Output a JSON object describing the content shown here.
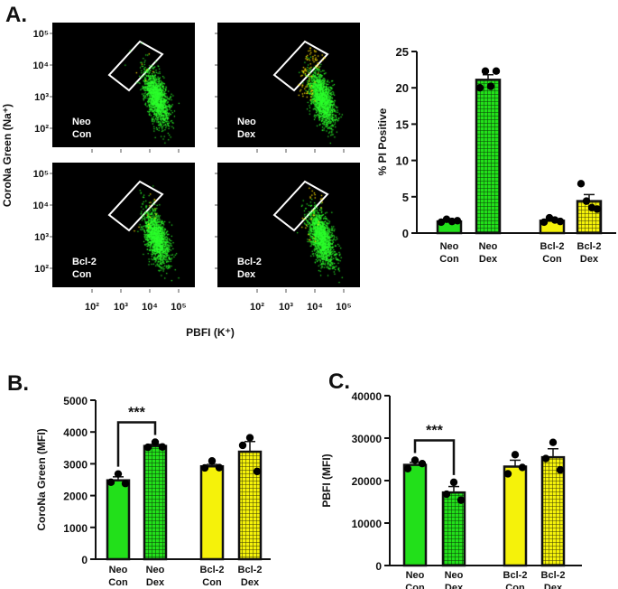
{
  "panel_labels": {
    "a": "A.",
    "b": "B.",
    "c": "C."
  },
  "colors": {
    "neo": "#22e01a",
    "bcl2": "#f5f20a",
    "gate": "#ffffff",
    "dot": "#000000",
    "flow_bg": "#000000"
  },
  "flow": {
    "y_axis_title": "CoroNa Green (Na⁺)",
    "x_axis_title": "PBFI (K⁺)",
    "y_ticks": [
      "10⁵",
      "10⁴",
      "10³",
      "10²"
    ],
    "x_ticks": [
      "10²",
      "10³",
      "10⁴",
      "10⁵"
    ],
    "plots": [
      {
        "label_1": "Neo",
        "label_2": "Con"
      },
      {
        "label_1": "Neo",
        "label_2": "Dex"
      },
      {
        "label_1": "Bcl-2",
        "label_2": "Con"
      },
      {
        "label_1": "Bcl-2",
        "label_2": "Dex"
      }
    ]
  },
  "chart_data": [
    {
      "type": "bar",
      "panel": "A",
      "ylabel": "% PI Positive",
      "ylim": [
        0,
        25
      ],
      "yticks": [
        "0",
        "5",
        "10",
        "15",
        "20",
        "25"
      ],
      "categories": [
        [
          "Neo",
          "Con"
        ],
        [
          "Neo",
          "Dex"
        ],
        [
          "Bcl-2",
          "Con"
        ],
        [
          "Bcl-2",
          "Dex"
        ]
      ],
      "values": [
        1.6,
        21.1,
        1.7,
        4.4
      ],
      "errors": [
        0.2,
        0.7,
        0.2,
        0.9
      ],
      "points": [
        [
          1.5,
          1.9,
          1.6,
          1.7
        ],
        [
          20.0,
          22.3,
          20.2,
          22.3
        ],
        [
          1.5,
          2.1,
          1.8,
          1.6
        ],
        [
          6.8,
          4.4,
          3.5,
          3.3
        ]
      ],
      "patterns": [
        "solid",
        "grid",
        "solid",
        "grid"
      ],
      "fills": [
        "neo",
        "neo",
        "bcl2",
        "bcl2"
      ]
    },
    {
      "type": "bar",
      "panel": "B",
      "ylabel": "CoroNa Green (MFI)",
      "ylim": [
        0,
        5000
      ],
      "yticks": [
        "0",
        "1000",
        "2000",
        "3000",
        "4000",
        "5000"
      ],
      "categories": [
        [
          "Neo",
          "Con"
        ],
        [
          "Neo",
          "Dex"
        ],
        [
          "Bcl-2",
          "Con"
        ],
        [
          "Bcl-2",
          "Dex"
        ]
      ],
      "values": [
        2480,
        3560,
        2920,
        3380
      ],
      "errors": [
        110,
        50,
        60,
        320
      ],
      "points": [
        [
          2680,
          2420,
          2380
        ],
        [
          3680,
          3520,
          3530
        ],
        [
          3090,
          2870,
          2880
        ],
        [
          3820,
          3580,
          2760
        ]
      ],
      "patterns": [
        "solid",
        "grid",
        "solid",
        "grid"
      ],
      "fills": [
        "neo",
        "neo",
        "bcl2",
        "bcl2"
      ],
      "significance": {
        "label": "***",
        "between": [
          0,
          1
        ]
      }
    },
    {
      "type": "bar",
      "panel": "C",
      "ylabel": "PBFI (MFI)",
      "ylim": [
        0,
        40000
      ],
      "yticks": [
        "0",
        "10000",
        "20000",
        "30000",
        "40000"
      ],
      "categories": [
        [
          "Neo",
          "Con"
        ],
        [
          "Neo",
          "Dex"
        ],
        [
          "Bcl-2",
          "Con"
        ],
        [
          "Bcl-2",
          "Dex"
        ]
      ],
      "values": [
        23700,
        17200,
        23300,
        25500
      ],
      "errors": [
        600,
        1400,
        1500,
        2000
      ],
      "points": [
        [
          24800,
          22800,
          24000
        ],
        [
          19600,
          16800,
          15400
        ],
        [
          26100,
          21600,
          23100
        ],
        [
          29000,
          25200,
          22500
        ]
      ],
      "patterns": [
        "solid",
        "grid",
        "solid",
        "grid"
      ],
      "fills": [
        "neo",
        "neo",
        "bcl2",
        "bcl2"
      ],
      "significance": {
        "label": "***",
        "between": [
          0,
          1
        ]
      }
    }
  ]
}
